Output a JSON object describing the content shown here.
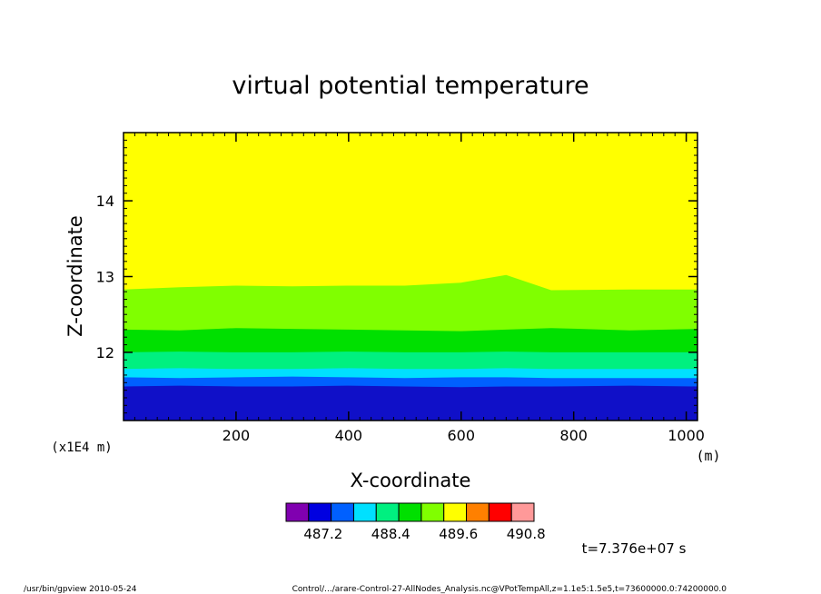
{
  "chart_data": {
    "type": "heatmap",
    "title": "virtual potential temperature",
    "xlabel": "X-coordinate",
    "ylabel": "Z-coordinate",
    "x_unit": "(m)",
    "y_scale_note": "(x1E4 m)",
    "xlim": [
      0,
      1020
    ],
    "ylim": [
      11.1,
      14.9
    ],
    "x_ticks": [
      "200",
      "400",
      "600",
      "800",
      "1000"
    ],
    "x_tick_values": [
      200,
      400,
      600,
      800,
      1000
    ],
    "y_ticks": [
      "12",
      "13",
      "14"
    ],
    "y_tick_values": [
      12,
      13,
      14
    ],
    "colorbar": {
      "labels": [
        "487.2",
        "488.4",
        "489.6",
        "490.8"
      ],
      "colors": [
        "#8000b0",
        "#0000e0",
        "#0060ff",
        "#00e0ff",
        "#00f080",
        "#00e000",
        "#80ff00",
        "#ffff00",
        "#ff8000",
        "#ff0000",
        "#ff9999"
      ]
    },
    "bands": [
      {
        "color": "#1010c8",
        "top": [
          11.55,
          11.56,
          11.55,
          11.55,
          11.56,
          11.55,
          11.54,
          11.55,
          11.55,
          11.56,
          11.55
        ]
      },
      {
        "color": "#0060ff",
        "top": [
          11.67,
          11.66,
          11.67,
          11.68,
          11.67,
          11.66,
          11.67,
          11.67,
          11.66,
          11.66,
          11.66
        ]
      },
      {
        "color": "#00e0ff",
        "top": [
          11.78,
          11.79,
          11.78,
          11.78,
          11.79,
          11.78,
          11.78,
          11.79,
          11.78,
          11.78,
          11.78
        ]
      },
      {
        "color": "#00f080",
        "top": [
          12.0,
          12.01,
          12.0,
          12.0,
          12.01,
          12.0,
          12.0,
          12.01,
          12.0,
          12.0,
          12.0
        ]
      },
      {
        "color": "#00e000",
        "top": [
          12.3,
          12.29,
          12.32,
          12.31,
          12.3,
          12.29,
          12.28,
          12.3,
          12.32,
          12.29,
          12.31
        ]
      },
      {
        "color": "#80ff00",
        "top": [
          12.83,
          12.86,
          12.88,
          12.87,
          12.88,
          12.88,
          12.92,
          13.02,
          12.82,
          12.83,
          12.83
        ]
      },
      {
        "color": "#ffff00",
        "top": [
          14.9,
          14.9,
          14.9,
          14.9,
          14.9,
          14.9,
          14.9,
          14.9,
          14.9,
          14.9,
          14.9
        ]
      }
    ],
    "band_x": [
      0,
      100,
      200,
      300,
      400,
      500,
      600,
      680,
      760,
      900,
      1020
    ]
  },
  "annotations": {
    "time": "t=7.376e+07 s",
    "footer_left": "/usr/bin/gpview   2010-05-24",
    "footer_right": "Control/.../arare-Control-27-AllNodes_Analysis.nc@VPotTempAll,z=1.1e5:1.5e5,t=73600000.0:74200000.0"
  }
}
